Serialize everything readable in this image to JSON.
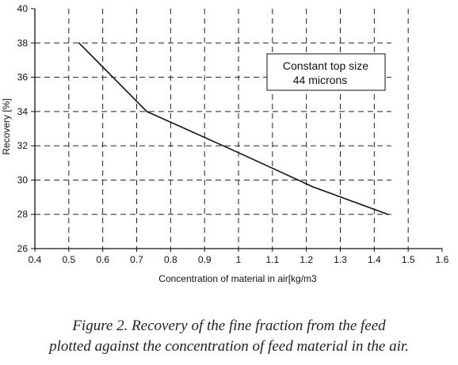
{
  "chart_data": {
    "type": "line",
    "title": "",
    "xlabel": "Concentration of material in air[kg/m3",
    "ylabel": "Recovery [%]",
    "xlim": [
      0.4,
      1.6
    ],
    "ylim": [
      26,
      40
    ],
    "x_ticks": [
      "0.4",
      "0.5",
      "0.6",
      "0.7",
      "0.8",
      "0.9",
      "1",
      "1.1",
      "1.2",
      "1.3",
      "1.4",
      "1.5",
      "1.6"
    ],
    "y_ticks": [
      "26",
      "28",
      "30",
      "32",
      "34",
      "36",
      "38",
      "40"
    ],
    "grid": true,
    "series": [
      {
        "x": [
          0.53,
          0.73,
          1.0,
          1.22,
          1.44
        ],
        "y": [
          38.0,
          34.0,
          31.6,
          29.6,
          28.0
        ],
        "color": "#111111"
      }
    ],
    "annotation": {
      "line1": "Constant top size",
      "line2": "44 microns"
    }
  },
  "caption": {
    "line1": "Figure 2. Recovery of the fine fraction from the feed",
    "line2": "plotted against the concentration of feed material in the air."
  }
}
